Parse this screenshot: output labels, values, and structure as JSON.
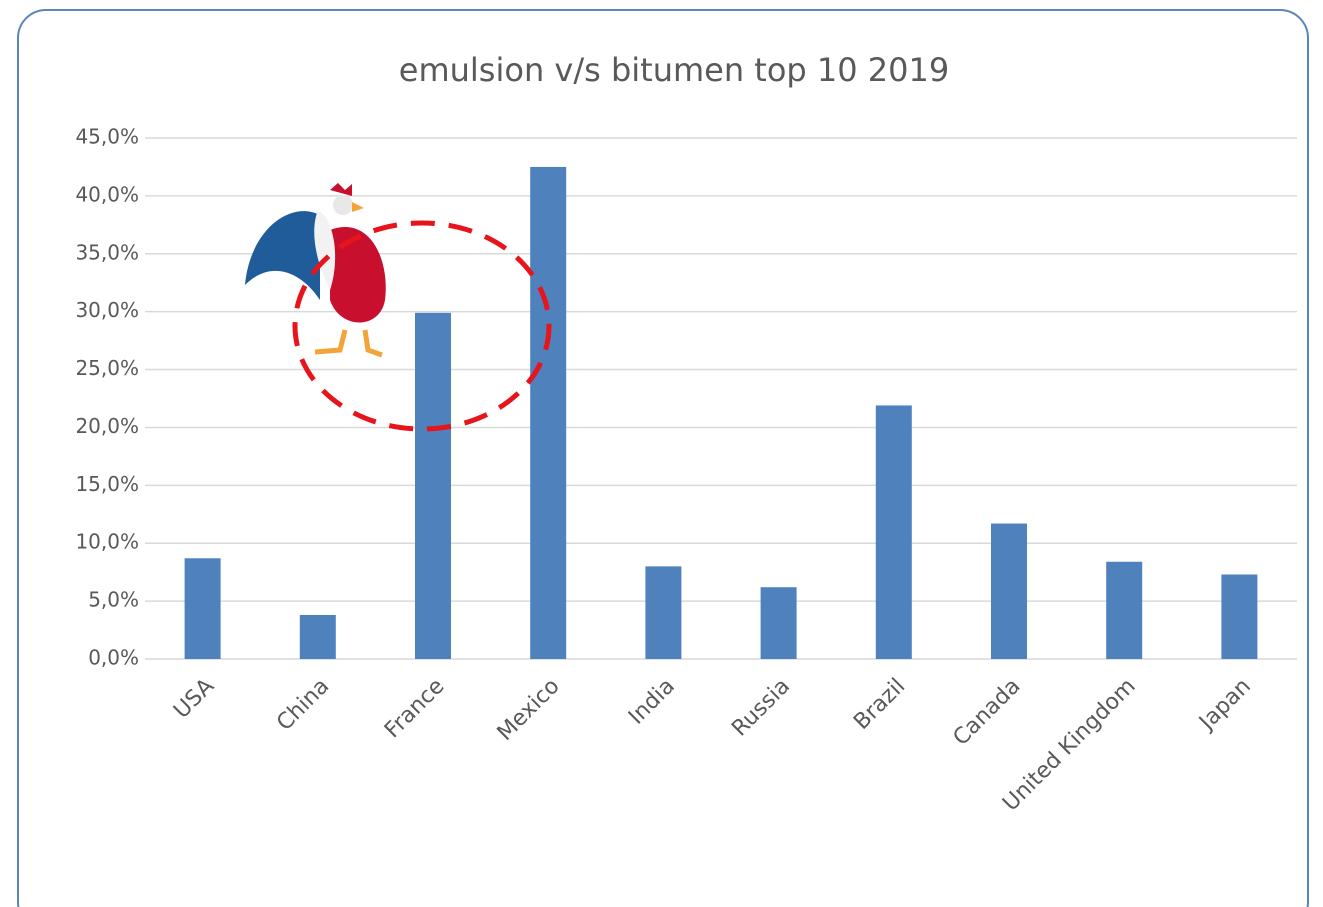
{
  "chart_data": {
    "type": "bar",
    "title": "emulsion v/s bitumen top 10 2019",
    "categories": [
      "USA",
      "China",
      "France",
      "Mexico",
      "India",
      "Russia",
      "Brazil",
      "Canada",
      "United Kingdom",
      "Japan"
    ],
    "values": [
      8.7,
      3.8,
      29.9,
      42.5,
      8.0,
      6.2,
      21.9,
      11.7,
      8.4,
      7.3
    ],
    "color": "#4f81bd",
    "ylim": [
      0,
      45
    ],
    "yticks": [
      {
        "value": 0,
        "label": "0,0%"
      },
      {
        "value": 5,
        "label": "5,0%"
      },
      {
        "value": 10,
        "label": "10,0%"
      },
      {
        "value": 15,
        "label": "15,0%"
      },
      {
        "value": 20,
        "label": "20,0%"
      },
      {
        "value": 25,
        "label": "25,0%"
      },
      {
        "value": 30,
        "label": "30,0%"
      },
      {
        "value": 35,
        "label": "35,0%"
      },
      {
        "value": 40,
        "label": "40,0%"
      },
      {
        "value": 45,
        "label": "45,0%"
      }
    ],
    "grid": true
  }
}
